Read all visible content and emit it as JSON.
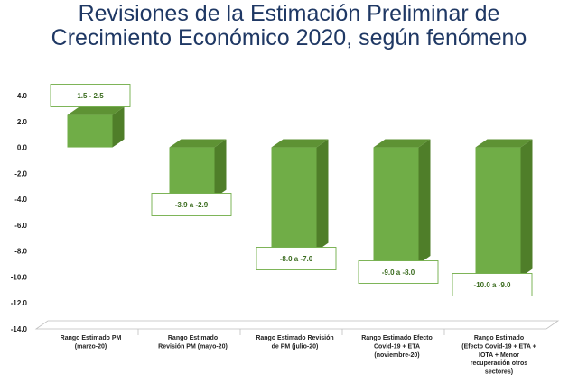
{
  "title_line1": "Revisiones de la Estimación Preliminar de",
  "title_line2": "Crecimiento Económico 2020, según fenómeno",
  "chart_data": {
    "type": "bar",
    "subtype": "floating-range-3d",
    "ylim": [
      -14,
      4
    ],
    "yticks": [
      "4.0",
      "2.0",
      "0.0",
      "-2.0",
      "-4.0",
      "-6.0",
      "-8.0",
      "-10.0",
      "-12.0",
      "-14.0"
    ],
    "grid": false,
    "bar_color": "#70AD47",
    "categories": [
      [
        "Rango Estimado PM",
        "(marzo-20)"
      ],
      [
        "Rango Estimado",
        "Revisión PM (mayo-20)"
      ],
      [
        "Rango Estimado Revisión",
        "de PM (julio-20)"
      ],
      [
        "Rango Estimado Efecto",
        "Covid-19 + ETA",
        "(noviembre-20)"
      ],
      [
        "Rango Estimado",
        "(Efecto Covid-19 + ETA +",
        "IOTA + Menor",
        "recuperación otros",
        "sectores)"
      ]
    ],
    "ranges": [
      [
        1.5,
        2.5
      ],
      [
        -3.9,
        -2.9
      ],
      [
        -8.0,
        -7.0
      ],
      [
        -9.0,
        -8.0
      ],
      [
        -10.0,
        -9.0
      ]
    ],
    "data_labels": [
      "1.5 - 2.5",
      "-3.9 a  -2.9",
      "-8.0 a -7.0",
      "-9.0 a -8.0",
      "-10.0 a -9.0"
    ]
  }
}
